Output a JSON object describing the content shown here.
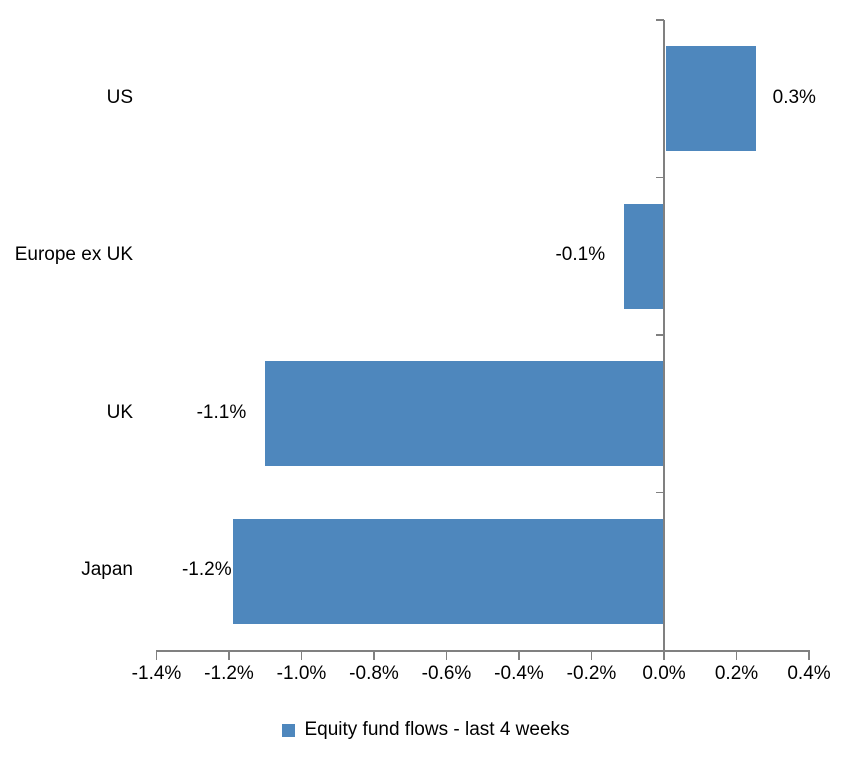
{
  "chart_data": {
    "type": "bar",
    "orientation": "horizontal",
    "title": "",
    "categories": [
      "US",
      "Europe ex UK",
      "UK",
      "Japan"
    ],
    "series": [
      {
        "name": "Equity fund flows - last 4 weeks",
        "values": [
          0.3,
          -0.1,
          -1.1,
          -1.2
        ],
        "value_labels": [
          "0.3%",
          "-0.1%",
          "-1.1%",
          "-1.2%"
        ]
      }
    ],
    "bar_pixel_extents_pct": [
      0.25,
      -0.11,
      -1.1,
      -1.19
    ],
    "unit": "%",
    "xlim": [
      -1.4,
      0.4
    ],
    "x_ticks": [
      -1.4,
      -1.2,
      -1.0,
      -0.8,
      -0.6,
      -0.4,
      -0.2,
      0.0,
      0.2,
      0.4
    ],
    "x_tick_labels": [
      "-1.4%",
      "-1.2%",
      "-1.0%",
      "-0.8%",
      "-0.6%",
      "-0.4%",
      "-0.2%",
      "0.0%",
      "0.2%",
      "0.4%"
    ],
    "grid": false,
    "legend_position": "bottom"
  },
  "legend": {
    "label": "Equity fund flows - last 4 weeks"
  },
  "colors": {
    "bar": "#4E87BD",
    "axis": "#808080",
    "text": "#000000",
    "background": "#FFFFFF"
  }
}
